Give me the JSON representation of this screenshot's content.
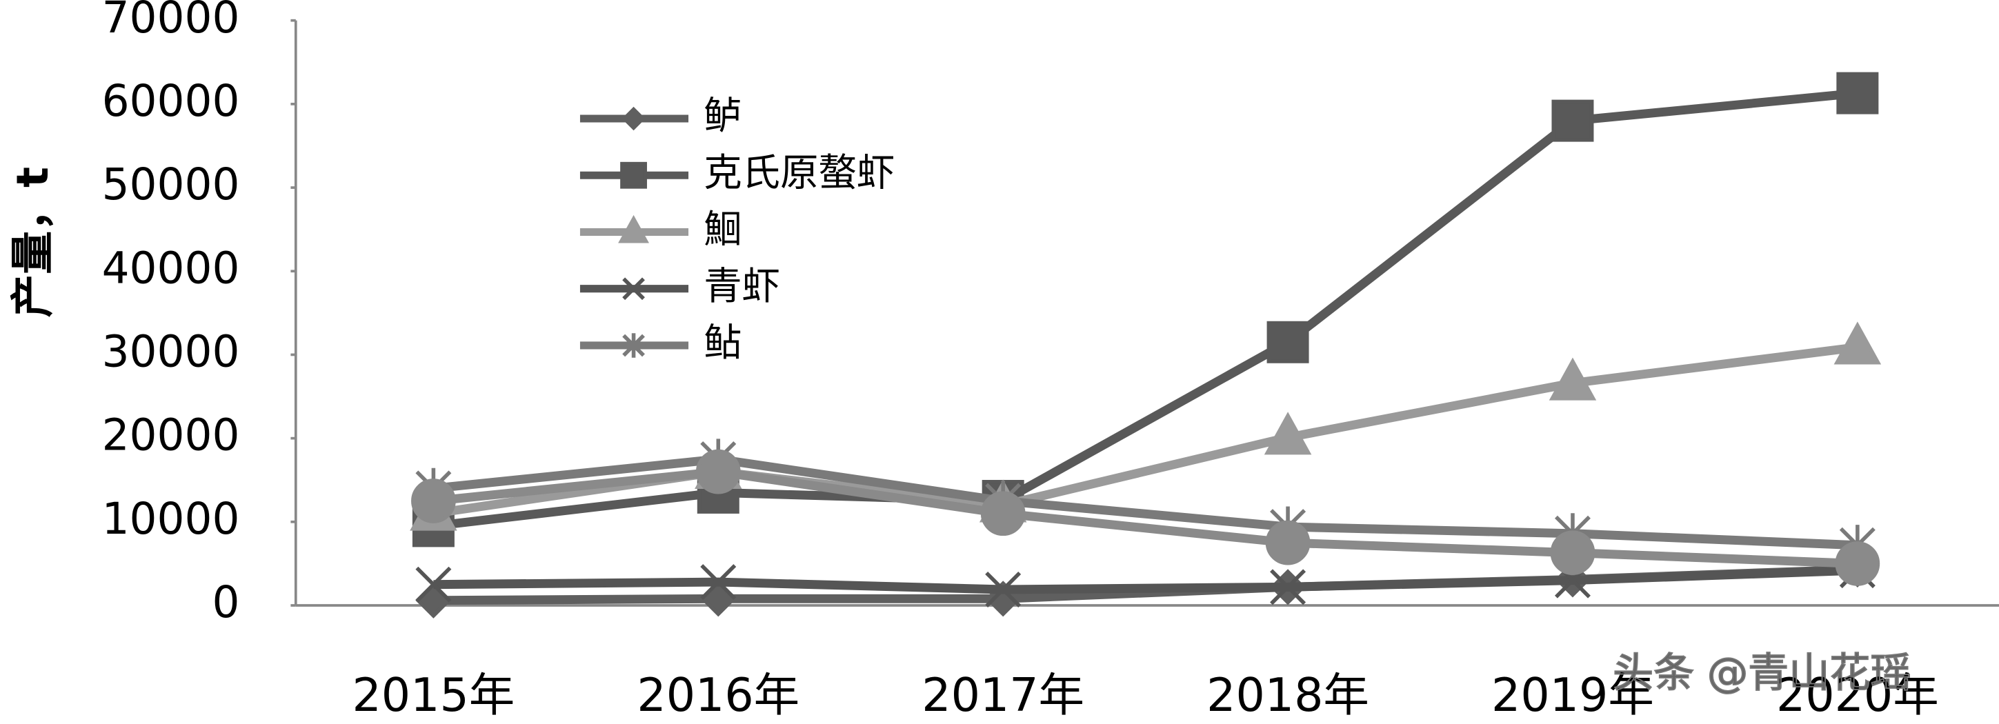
{
  "chart_data": {
    "type": "line",
    "y_label": "产量，t",
    "categories": [
      "2015年",
      "2016年",
      "2017年",
      "2018年",
      "2019年",
      "2020年"
    ],
    "series": [
      {
        "name": "鲈",
        "color": "#5f5f5f",
        "marker": "diamond",
        "values": [
          600,
          800,
          800,
          2200,
          3100,
          4300
        ]
      },
      {
        "name": "克氏原螯虾",
        "color": "#595959",
        "marker": "square",
        "values": [
          9500,
          13500,
          12500,
          31500,
          58000,
          61300
        ]
      },
      {
        "name": "鮰",
        "color": "#9a9a9a",
        "marker": "triangle",
        "values": [
          11000,
          16000,
          12000,
          20100,
          26600,
          30900
        ]
      },
      {
        "name": "青虾",
        "color": "#555555",
        "marker": "x",
        "values": [
          2500,
          2800,
          1900,
          2200,
          3000,
          4200
        ]
      },
      {
        "name": "鲇",
        "color": "#7a7a7a",
        "marker": "star",
        "values": [
          14000,
          17500,
          12500,
          9400,
          8600,
          7200
        ]
      },
      {
        "color": "#8a8a8a",
        "marker": "circle",
        "values": [
          12500,
          16000,
          11000,
          7500,
          6300,
          5000
        ]
      }
    ],
    "ylim": [
      0,
      70000
    ],
    "yticks": [
      0,
      10000,
      20000,
      30000,
      40000,
      50000,
      60000,
      70000
    ],
    "grid": false,
    "legend": "upper-left",
    "watermark": "头条 @青山花瑶"
  }
}
